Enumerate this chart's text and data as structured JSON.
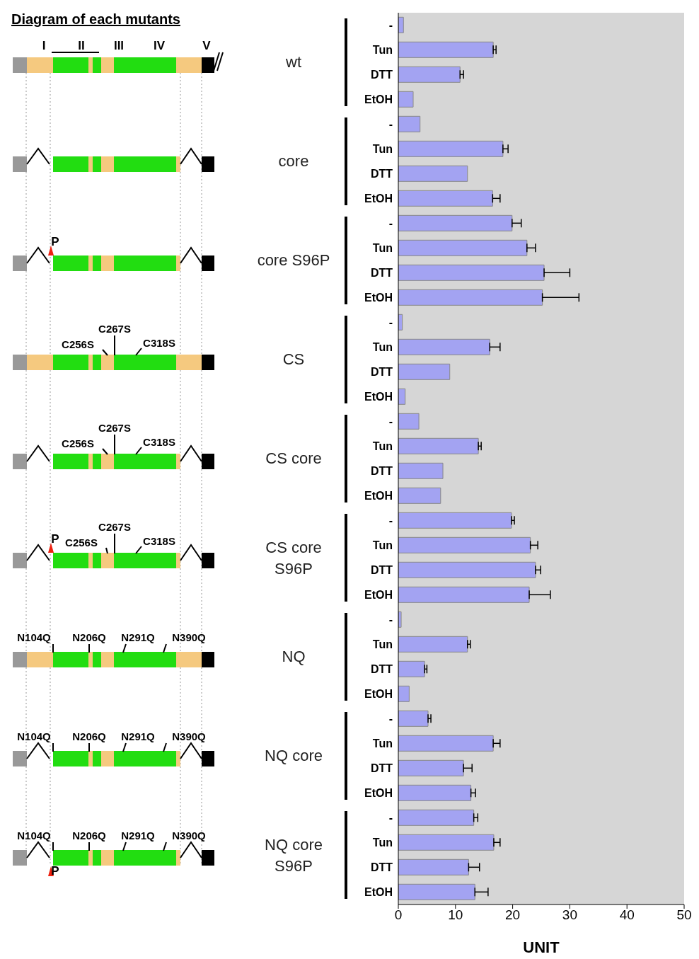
{
  "chart_data": {
    "type": "bar",
    "orientation": "horizontal",
    "title": "Diagram of each mutants",
    "xlabel": "UNIT",
    "color": "#a3a3f2",
    "categories": [
      "-",
      "Tun",
      "DTT",
      "EtOH",
      "-",
      "Tun",
      "DTT",
      "EtOH",
      "-",
      "Tun",
      "DTT",
      "EtOH",
      "-",
      "Tun",
      "DTT",
      "EtOH",
      "-",
      "Tun",
      "DTT",
      "EtOH",
      "-",
      "Tun",
      "DTT",
      "EtOH",
      "-",
      "Tun",
      "DTT",
      "EtOH",
      "-",
      "Tun",
      "DTT",
      "EtOH",
      "-",
      "Tun",
      "DTT",
      "EtOH"
    ],
    "values": [
      0.9,
      16.6,
      10.8,
      2.6,
      3.8,
      18.3,
      12.1,
      16.5,
      19.9,
      22.5,
      25.5,
      25.2,
      0.7,
      16.0,
      9.0,
      1.2,
      3.6,
      14.0,
      7.8,
      7.4,
      19.8,
      23.1,
      24.0,
      22.9,
      0.5,
      12.1,
      4.6,
      1.9,
      5.2,
      16.6,
      11.4,
      12.7,
      13.2,
      16.7,
      12.3,
      13.4
    ],
    "errors": [
      null,
      [
        16.6,
        17.1
      ],
      [
        10.8,
        11.4
      ],
      null,
      null,
      [
        18.3,
        19.2
      ],
      null,
      [
        16.5,
        17.8
      ],
      [
        19.9,
        21.5
      ],
      [
        22.5,
        24.0
      ],
      [
        25.5,
        30.0
      ],
      [
        25.2,
        31.6
      ],
      null,
      [
        16.0,
        17.8
      ],
      null,
      null,
      null,
      [
        14.0,
        14.5
      ],
      null,
      null,
      [
        19.8,
        20.3
      ],
      [
        23.1,
        24.4
      ],
      [
        24.0,
        24.9
      ],
      [
        22.9,
        26.6
      ],
      null,
      [
        12.1,
        12.6
      ],
      [
        4.6,
        5.0
      ],
      null,
      [
        5.2,
        5.7
      ],
      [
        16.6,
        17.8
      ],
      [
        11.4,
        12.9
      ],
      [
        12.7,
        13.5
      ],
      [
        13.2,
        13.9
      ],
      [
        16.7,
        17.8
      ],
      [
        12.3,
        14.2
      ],
      [
        13.4,
        15.7
      ]
    ],
    "xlim": [
      0,
      50
    ],
    "xticks": [
      0,
      10,
      20,
      30,
      40,
      50
    ],
    "annotations": [
      "wt",
      "core",
      "core S96P",
      "CS",
      "CS core",
      "CS core S96P",
      "NQ",
      "NQ core",
      "NQ core S96P",
      "I",
      "II",
      "III",
      "IV",
      "V",
      "P",
      "C256S",
      "C267S",
      "C318S",
      "C256S",
      "C267S",
      "C318S",
      "P",
      "C256S",
      "C267S",
      "C318S",
      "N104Q",
      "N206Q",
      "N291Q",
      "N390Q",
      "N104Q",
      "N206Q",
      "N291Q",
      "N390Q",
      "N104Q",
      "N206Q",
      "N291Q",
      "N390Q",
      "P"
    ]
  }
}
